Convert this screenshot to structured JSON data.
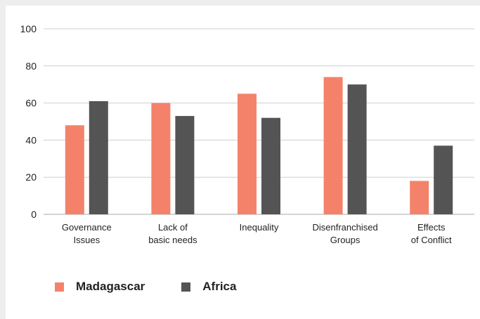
{
  "chart_data": {
    "type": "bar",
    "categories": [
      [
        "Governance",
        "Issues"
      ],
      [
        "Lack of",
        "basic needs"
      ],
      [
        "Inequality"
      ],
      [
        "Disenfranchised",
        "Groups"
      ],
      [
        "Effects",
        "of Conflict"
      ]
    ],
    "series": [
      {
        "name": "Madagascar",
        "color": "#f4826a",
        "values": [
          48,
          60,
          65,
          74,
          18
        ]
      },
      {
        "name": "Africa",
        "color": "#545454",
        "values": [
          61,
          53,
          52,
          70,
          37
        ]
      }
    ],
    "yticks": [
      "0",
      "20",
      "40",
      "60",
      "80",
      "100"
    ],
    "ylim": [
      0,
      100
    ],
    "grid": true,
    "legend_position": "bottom-left"
  }
}
